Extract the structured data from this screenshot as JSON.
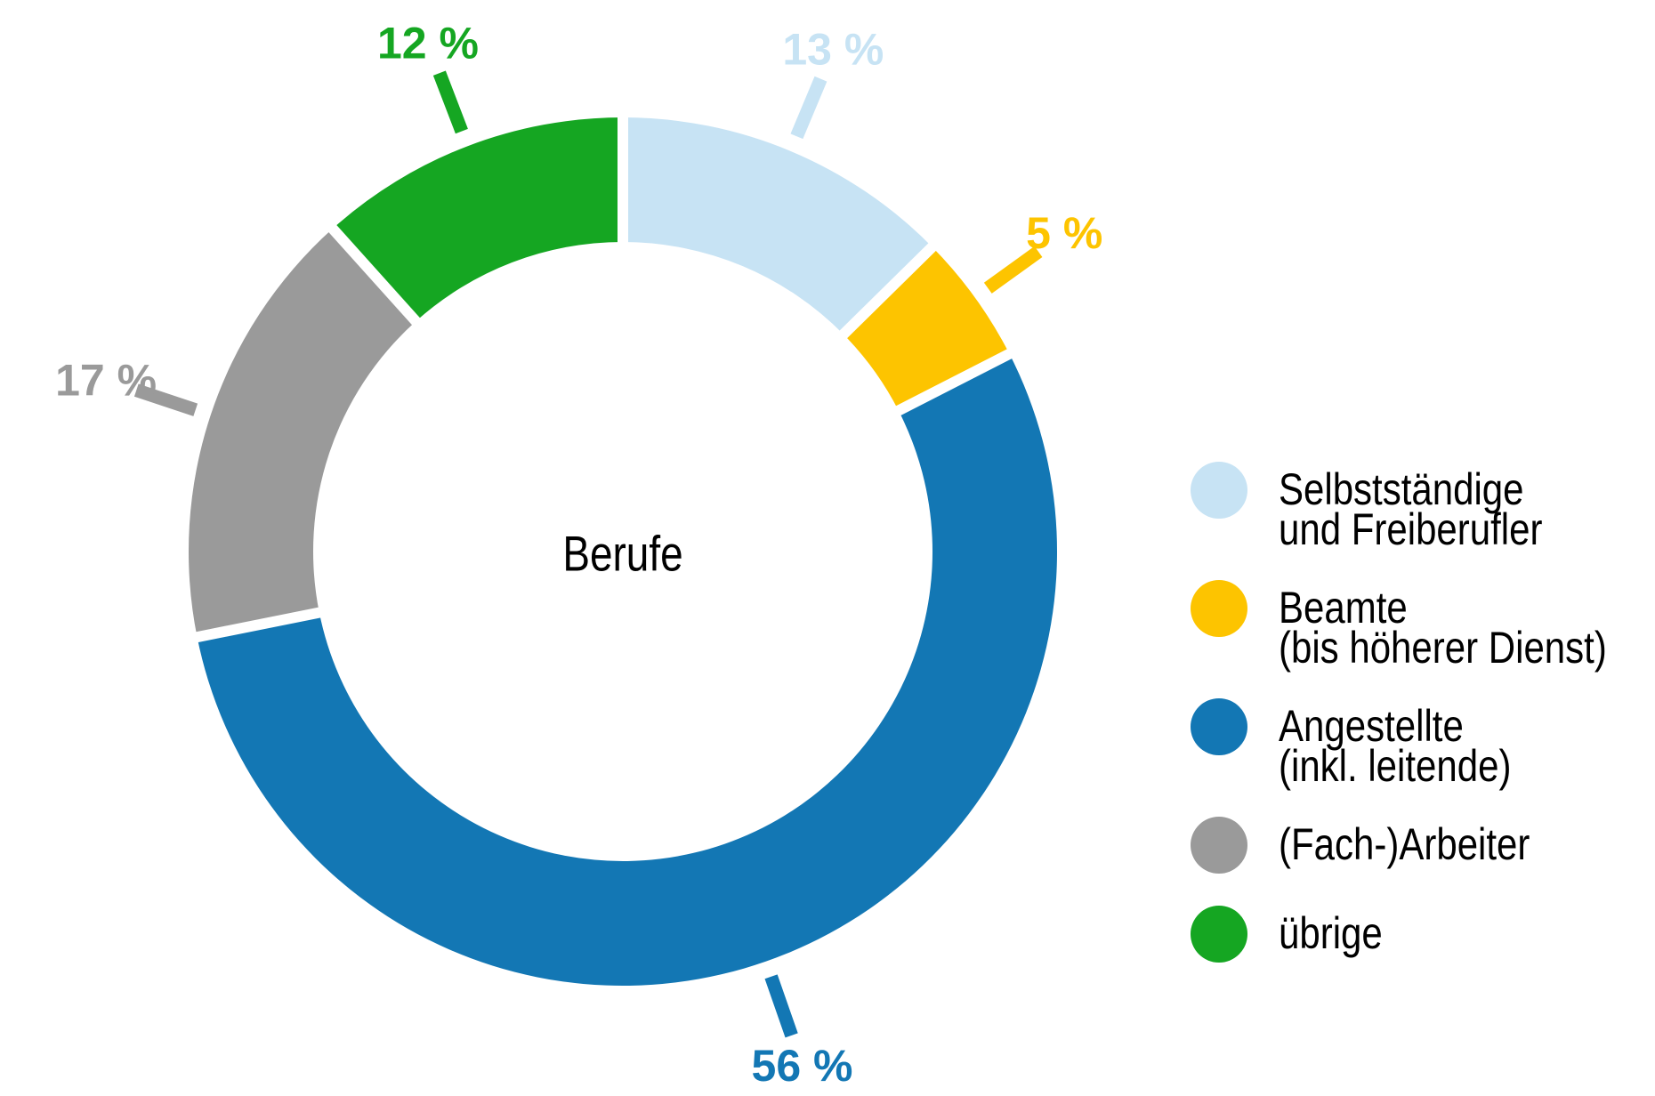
{
  "page": {
    "background": "#ffffff"
  },
  "chart_data": {
    "type": "pie",
    "variant": "donut",
    "title": "Berufe",
    "legend_position": "right",
    "start_angle_deg": 0,
    "clockwise": true,
    "values_unit": "%",
    "segments": [
      {
        "label": "Selbstständige und Freiberufler",
        "legend_lines": [
          "Selbstständige",
          "und Freiberufler"
        ],
        "value": 13,
        "value_label": "13 %",
        "color": "#c7e3f4"
      },
      {
        "label": "Beamte (bis höherer Dienst)",
        "legend_lines": [
          "Beamte",
          "(bis höherer Dienst)"
        ],
        "value": 5,
        "value_label": "5 %",
        "color": "#fdc400"
      },
      {
        "label": "Angestellte (inkl. leitende)",
        "legend_lines": [
          "Angestellte",
          "(inkl. leitende)"
        ],
        "value": 56,
        "value_label": "56 %",
        "color": "#1377b4"
      },
      {
        "label": "(Fach-)Arbeiter",
        "legend_lines": [
          "(Fach-)Arbeiter"
        ],
        "value": 17,
        "value_label": "17 %",
        "color": "#9a9a9a"
      },
      {
        "label": "übrige",
        "legend_lines": [
          "übrige"
        ],
        "value": 12,
        "value_label": "12 %",
        "color": "#15a622"
      }
    ]
  }
}
